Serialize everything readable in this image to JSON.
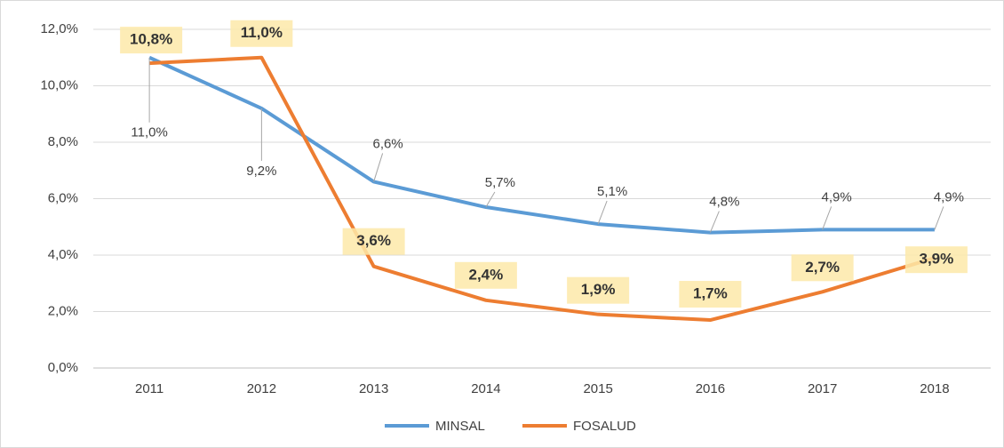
{
  "chart_data": {
    "type": "line",
    "categories": [
      "2011",
      "2012",
      "2013",
      "2014",
      "2015",
      "2016",
      "2017",
      "2018"
    ],
    "series": [
      {
        "name": "MINSAL",
        "color": "#5b9bd5",
        "values": [
          11.0,
          9.2,
          6.6,
          5.7,
          5.1,
          4.8,
          4.9,
          4.9
        ],
        "value_labels": [
          "11,0%",
          "9,2%",
          "6,6%",
          "5,7%",
          "5,1%",
          "4,8%",
          "4,9%",
          "4,9%"
        ]
      },
      {
        "name": "FOSALUD",
        "color": "#ed7d31",
        "values": [
          10.8,
          11.0,
          3.6,
          2.4,
          1.9,
          1.7,
          2.7,
          3.9
        ],
        "value_labels": [
          "10,8%",
          "11,0%",
          "3,6%",
          "2,4%",
          "1,9%",
          "1,7%",
          "2,7%",
          "3,9%"
        ]
      }
    ],
    "ylim": [
      0,
      12
    ],
    "yticks": [
      {
        "value": 0,
        "label": "0,0%"
      },
      {
        "value": 2,
        "label": "2,0%"
      },
      {
        "value": 4,
        "label": "4,0%"
      },
      {
        "value": 6,
        "label": "6,0%"
      },
      {
        "value": 8,
        "label": "8,0%"
      },
      {
        "value": 10,
        "label": "10,0%"
      },
      {
        "value": 12,
        "label": "12,0%"
      }
    ],
    "grid": true,
    "legend": "bottom"
  }
}
